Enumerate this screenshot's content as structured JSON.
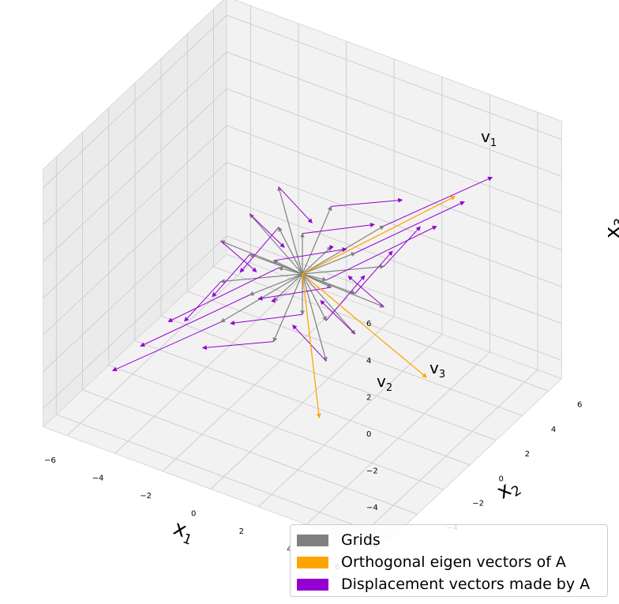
{
  "chart_data": {
    "type": "3d-quiver",
    "axes": {
      "x": {
        "label": "x",
        "label_sub": "1",
        "ticks": [
          "−6",
          "−4",
          "−2",
          "0",
          "2",
          "4",
          "6"
        ],
        "lim": [
          -7,
          7
        ]
      },
      "y": {
        "label": "x",
        "label_sub": "2",
        "ticks": [
          "−4",
          "−2",
          "0",
          "2",
          "4",
          "6"
        ],
        "lim": [
          -7,
          7
        ]
      },
      "z": {
        "label": "x",
        "label_sub": "3",
        "ticks": [
          "−6",
          "−4",
          "−2",
          "0",
          "2",
          "4",
          "6"
        ],
        "lim": [
          -7,
          7
        ]
      }
    },
    "grid": true,
    "legend_position": "bottom-right",
    "legend": [
      {
        "label": "Grids",
        "color": "#808080"
      },
      {
        "label": "Orthogonal eigen vectors of A",
        "color": "#FFA500"
      },
      {
        "label": "Displacement vectors made by A",
        "color": "#9400D3"
      }
    ],
    "eigenvectors": [
      {
        "name": "v",
        "sub": "1",
        "vector": [
          5.5,
          1.6,
          5.8
        ]
      },
      {
        "name": "v",
        "sub": "2",
        "vector": [
          1.8,
          -2.0,
          -5.6
        ]
      },
      {
        "name": "v",
        "sub": "3",
        "vector": [
          4.2,
          1.8,
          -4.8
        ]
      }
    ],
    "matrix_A": [
      [
        1.6,
        0.2,
        1.2
      ],
      [
        0.2,
        0.6,
        0.3
      ],
      [
        1.2,
        0.3,
        1.6
      ]
    ],
    "grid_vector_range": [
      -1,
      1
    ],
    "grid_vector_step": 1
  },
  "colors": {
    "grids": "#808080",
    "eigen": "#FFA500",
    "displacement": "#9400D3",
    "pane": "#f2f2f2",
    "pane_side": "#ebebeb",
    "gridline": "#cfcfcf"
  }
}
